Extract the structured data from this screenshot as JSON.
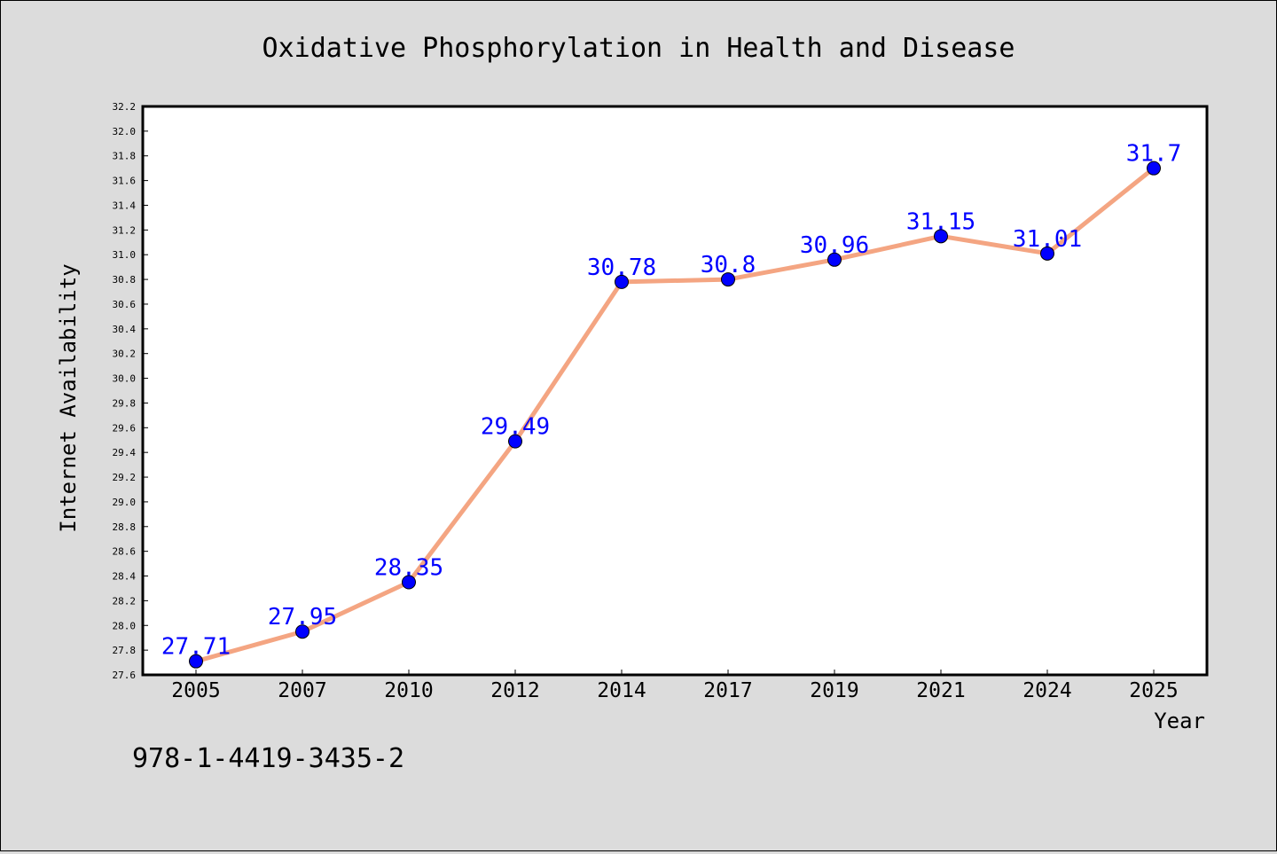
{
  "colors": {
    "background": "#dcdcdc",
    "plot_background": "#ffffff",
    "line": "#f4a582",
    "marker": "#0000ff",
    "data_label": "#0000ff",
    "text": "#000000"
  },
  "isbn_text": "978-1-4419-3435-2",
  "chart_data": {
    "type": "line",
    "title": "Oxidative Phosphorylation in Health and Disease",
    "xlabel": "Year",
    "ylabel": "Internet Availability",
    "categories": [
      "2005",
      "2007",
      "2010",
      "2012",
      "2014",
      "2017",
      "2019",
      "2021",
      "2024",
      "2025"
    ],
    "series": [
      {
        "values": [
          27.71,
          27.95,
          28.35,
          29.49,
          30.78,
          30.8,
          30.96,
          31.15,
          31.01,
          31.7
        ],
        "data_labels": [
          "27.71",
          "27.95",
          "28.35",
          "29.49",
          "30.78",
          "30.8",
          "30.96",
          "31.15",
          "31.01",
          "31.7"
        ]
      }
    ],
    "ylim": [
      27.6,
      32.2
    ],
    "yticks": [
      "27.6",
      "27.8",
      "28.0",
      "28.2",
      "28.4",
      "28.6",
      "28.8",
      "29.0",
      "29.2",
      "29.4",
      "29.6",
      "29.8",
      "30.0",
      "30.2",
      "30.4",
      "30.6",
      "30.8",
      "31.0",
      "31.2",
      "31.4",
      "31.6",
      "31.8",
      "32.0",
      "32.2"
    ],
    "grid": false,
    "legend": "none",
    "marker": "circle"
  }
}
